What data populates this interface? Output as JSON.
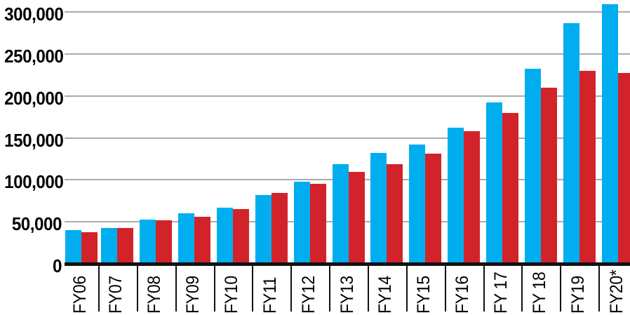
{
  "chart_data": {
    "type": "bar",
    "title": "",
    "xlabel": "",
    "ylabel": "",
    "categories": [
      "FY06",
      "FY07",
      "FY08",
      "FY09",
      "FY10",
      "FY11",
      "FY12",
      "FY13",
      "FY14",
      "FY15",
      "FY16",
      "FY 17",
      "FY 18",
      "FY19",
      "FY20*"
    ],
    "series": [
      {
        "name": "blue",
        "color": "#00AEEF",
        "values": [
          40000,
          43000,
          52500,
          60000,
          67000,
          82000,
          98000,
          119000,
          132000,
          142000,
          162000,
          192000,
          232000,
          287000,
          309000
        ]
      },
      {
        "name": "red",
        "color": "#D2232A",
        "values": [
          38000,
          43000,
          52000,
          56000,
          65500,
          84500,
          95500,
          109500,
          119000,
          131000,
          158000,
          180000,
          210000,
          230000,
          227000
        ]
      }
    ],
    "y_ticks": [
      {
        "label": "300,000",
        "value": 300000
      },
      {
        "label": "250,000",
        "value": 250000
      },
      {
        "label": "200,000",
        "value": 200000
      },
      {
        "label": "150,000",
        "value": 150000
      },
      {
        "label": "100,000",
        "value": 100000
      },
      {
        "label": "50,000",
        "value": 50000
      },
      {
        "label": "0",
        "value": 0
      }
    ],
    "ylim": [
      0,
      310000
    ],
    "grid": "horizontal",
    "legend_position": "none",
    "x_label_rotation": -90
  },
  "colors": {
    "bar_blue": "#00AEEF",
    "bar_red": "#D2232A",
    "gridline": "#A9ABAE",
    "axis": "#111111",
    "text": "#000000",
    "background": "#FFFFFF"
  }
}
